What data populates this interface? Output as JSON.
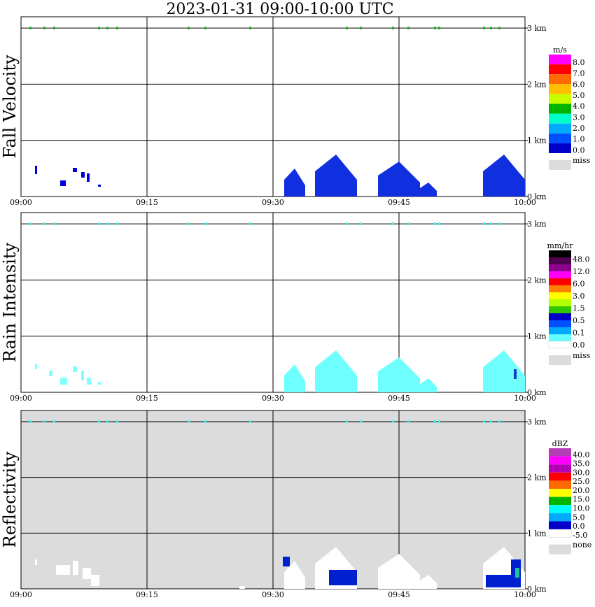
{
  "title": "2023-01-31   09:00-10:00 UTC",
  "colors": {
    "grid": "#000000",
    "refl_background": "#dcdcdc",
    "miss": "#dcdcdc"
  },
  "chart_data": [
    {
      "type": "heatmap",
      "ylabel": "Fall Velocity",
      "x_ticks": [
        "09:00",
        "09:15",
        "09:30",
        "09:45",
        "10:00"
      ],
      "y_ticks": [
        "0 km",
        "1 km",
        "2 km",
        "3 km"
      ],
      "xlim": [
        "09:00",
        "10:00"
      ],
      "ylim_km": [
        0,
        3.2
      ],
      "legend": {
        "unit": "m/s",
        "labels": [
          "8.0",
          "7.0",
          "6.0",
          "5.0",
          "4.0",
          "3.0",
          "2.0",
          "1.0",
          "0.0"
        ],
        "colors": [
          "#ff00ff",
          "#ff0000",
          "#ff6a00",
          "#ffbf00",
          "#c8ff00",
          "#00b400",
          "#00ffc8",
          "#00aaff",
          "#0050ff",
          "#0000c8"
        ],
        "miss_label": "miss"
      }
    },
    {
      "type": "heatmap",
      "ylabel": "Rain Intensity",
      "x_ticks": [
        "09:00",
        "09:15",
        "09:30",
        "09:45",
        "10:00"
      ],
      "y_ticks": [
        "0 km",
        "1 km",
        "2 km",
        "3 km"
      ],
      "xlim": [
        "09:00",
        "10:00"
      ],
      "ylim_km": [
        0,
        3.2
      ],
      "legend": {
        "unit": "mm/hr",
        "labels": [
          "48.0",
          "12.0",
          "6.0",
          "3.0",
          "1.5",
          "0.5",
          "0.1",
          "0.0"
        ],
        "colors": [
          "#000000",
          "#500050",
          "#8c008c",
          "#ff00ff",
          "#ff0000",
          "#ff7f00",
          "#ffff00",
          "#b4ff00",
          "#32c800",
          "#0000c8",
          "#0050ff",
          "#00aaff",
          "#64ffff",
          "#ffffff"
        ],
        "miss_label": "miss"
      }
    },
    {
      "type": "heatmap",
      "ylabel": "Reflectivity",
      "x_ticks": [
        "09:00",
        "09:15",
        "09:30",
        "09:45",
        "10:00"
      ],
      "y_ticks": [
        "0 km",
        "1 km",
        "2 km",
        "3 km"
      ],
      "xlim": [
        "09:00",
        "10:00"
      ],
      "ylim_km": [
        0,
        3.2
      ],
      "legend": {
        "unit": "dBZ",
        "labels": [
          "40.0",
          "35.0",
          "30.0",
          "25.0",
          "20.0",
          "15.0",
          "10.0",
          "5.0",
          "0.0",
          "-5.0"
        ],
        "colors": [
          "#b43cb4",
          "#ff00ff",
          "#b400b4",
          "#ff0000",
          "#ff6a00",
          "#ffff00",
          "#00b400",
          "#00ffff",
          "#00aaff",
          "#0000c8",
          "#ffffff"
        ],
        "miss_label": "none"
      }
    }
  ]
}
